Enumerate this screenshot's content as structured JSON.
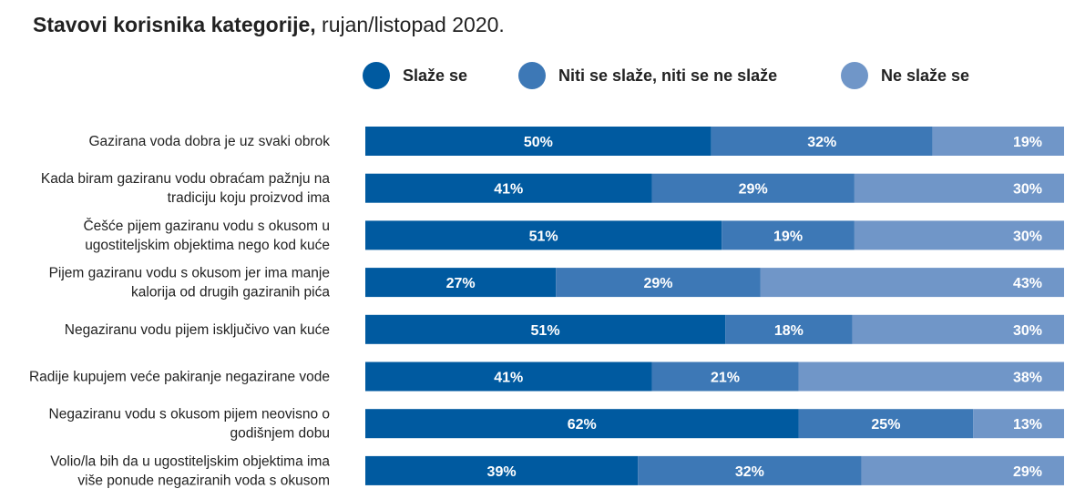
{
  "header": {
    "title_bold": "Stavovi korisnika kategorije,",
    "title_regular": " rujan/listopad 2020."
  },
  "chart_data": {
    "type": "bar",
    "orientation": "horizontal",
    "stacked": true,
    "legend_position": "top",
    "grid": false,
    "categories": [
      [
        "Gazirana voda dobra je uz svaki obrok"
      ],
      [
        "Kada biram gaziranu vodu obraćam pažnju na",
        "tradiciju koju proizvod ima"
      ],
      [
        "Češće pijem gaziranu vodu s okusom u",
        "ugostiteljskim objektima nego kod kuće"
      ],
      [
        "Pijem gaziranu vodu s okusom jer ima manje",
        "kalorija od drugih gaziranih pića"
      ],
      [
        "Negaziranu vodu pijem isključivo van kuće"
      ],
      [
        "Radije kupujem veće pakiranje negazirane vode"
      ],
      [
        "Negaziranu vodu s okusom pijem neovisno o",
        "godišnjem dobu"
      ],
      [
        "Volio/la bih da u ugostiteljskim objektima ima",
        "više ponude negaziranih voda s okusom"
      ]
    ],
    "series": [
      {
        "name": "Slaže se",
        "color": "#005aa0",
        "values": [
          50,
          41,
          51,
          27,
          51,
          41,
          62,
          39
        ]
      },
      {
        "name": "Niti se slaže, niti se ne slaže",
        "color": "#3d78b6",
        "values": [
          32,
          29,
          19,
          29,
          18,
          21,
          25,
          32
        ]
      },
      {
        "name": "Ne slaže se",
        "color": "#7096c8",
        "values": [
          19,
          30,
          30,
          43,
          30,
          38,
          13,
          29
        ]
      }
    ],
    "value_suffix": "%"
  }
}
